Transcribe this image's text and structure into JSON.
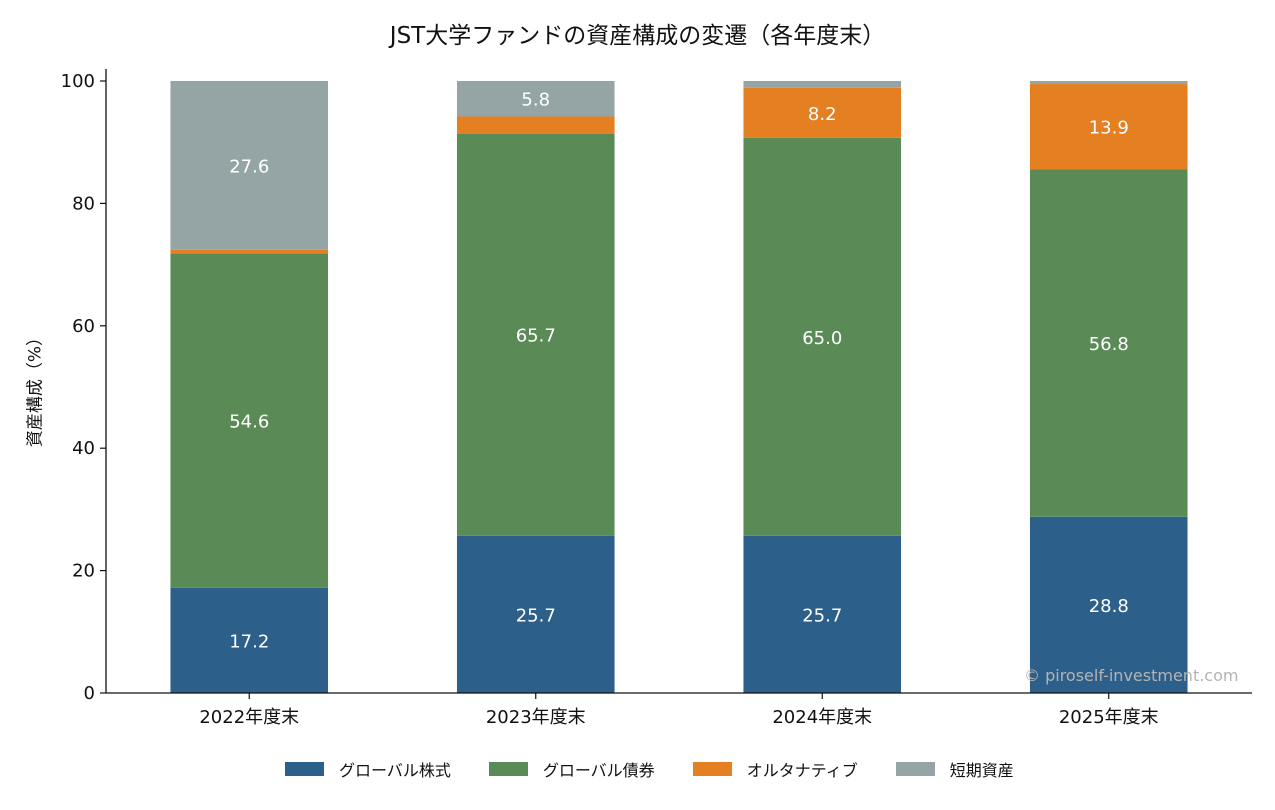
{
  "title": "JST大学ファンドの資産構成の変遷（各年度末）",
  "ylabel": "資産構成（%）",
  "watermark": "© piroself-investment.com",
  "chart_data": {
    "type": "bar",
    "stacked": true,
    "title": "JST大学ファンドの資産構成の変遷（各年度末）",
    "xlabel": "",
    "ylabel": "資産構成（%）",
    "ylim": [
      0,
      100
    ],
    "yticks": [
      0,
      20,
      40,
      60,
      80,
      100
    ],
    "categories": [
      "2022年度末",
      "2023年度末",
      "2024年度末",
      "2025年度末"
    ],
    "series": [
      {
        "name": "グローバル株式",
        "color": "#2c5f8a",
        "values": [
          17.2,
          25.7,
          25.7,
          28.8
        ],
        "labels": [
          "17.2",
          "25.7",
          "25.7",
          "28.8"
        ]
      },
      {
        "name": "グローバル債券",
        "color": "#5a8b57",
        "values": [
          54.6,
          65.7,
          65.0,
          56.8
        ],
        "labels": [
          "54.6",
          "65.7",
          "65.0",
          "56.8"
        ]
      },
      {
        "name": "オルタナティブ",
        "color": "#e58022",
        "values": [
          0.6,
          2.8,
          8.2,
          13.9
        ],
        "labels": [
          "",
          "",
          "8.2",
          "13.9"
        ]
      },
      {
        "name": "短期資産",
        "color": "#95a5a6",
        "values": [
          27.6,
          5.8,
          1.1,
          0.5
        ],
        "labels": [
          "27.6",
          "5.8",
          "",
          ""
        ]
      }
    ],
    "legend_position": "bottom",
    "grid": false
  }
}
